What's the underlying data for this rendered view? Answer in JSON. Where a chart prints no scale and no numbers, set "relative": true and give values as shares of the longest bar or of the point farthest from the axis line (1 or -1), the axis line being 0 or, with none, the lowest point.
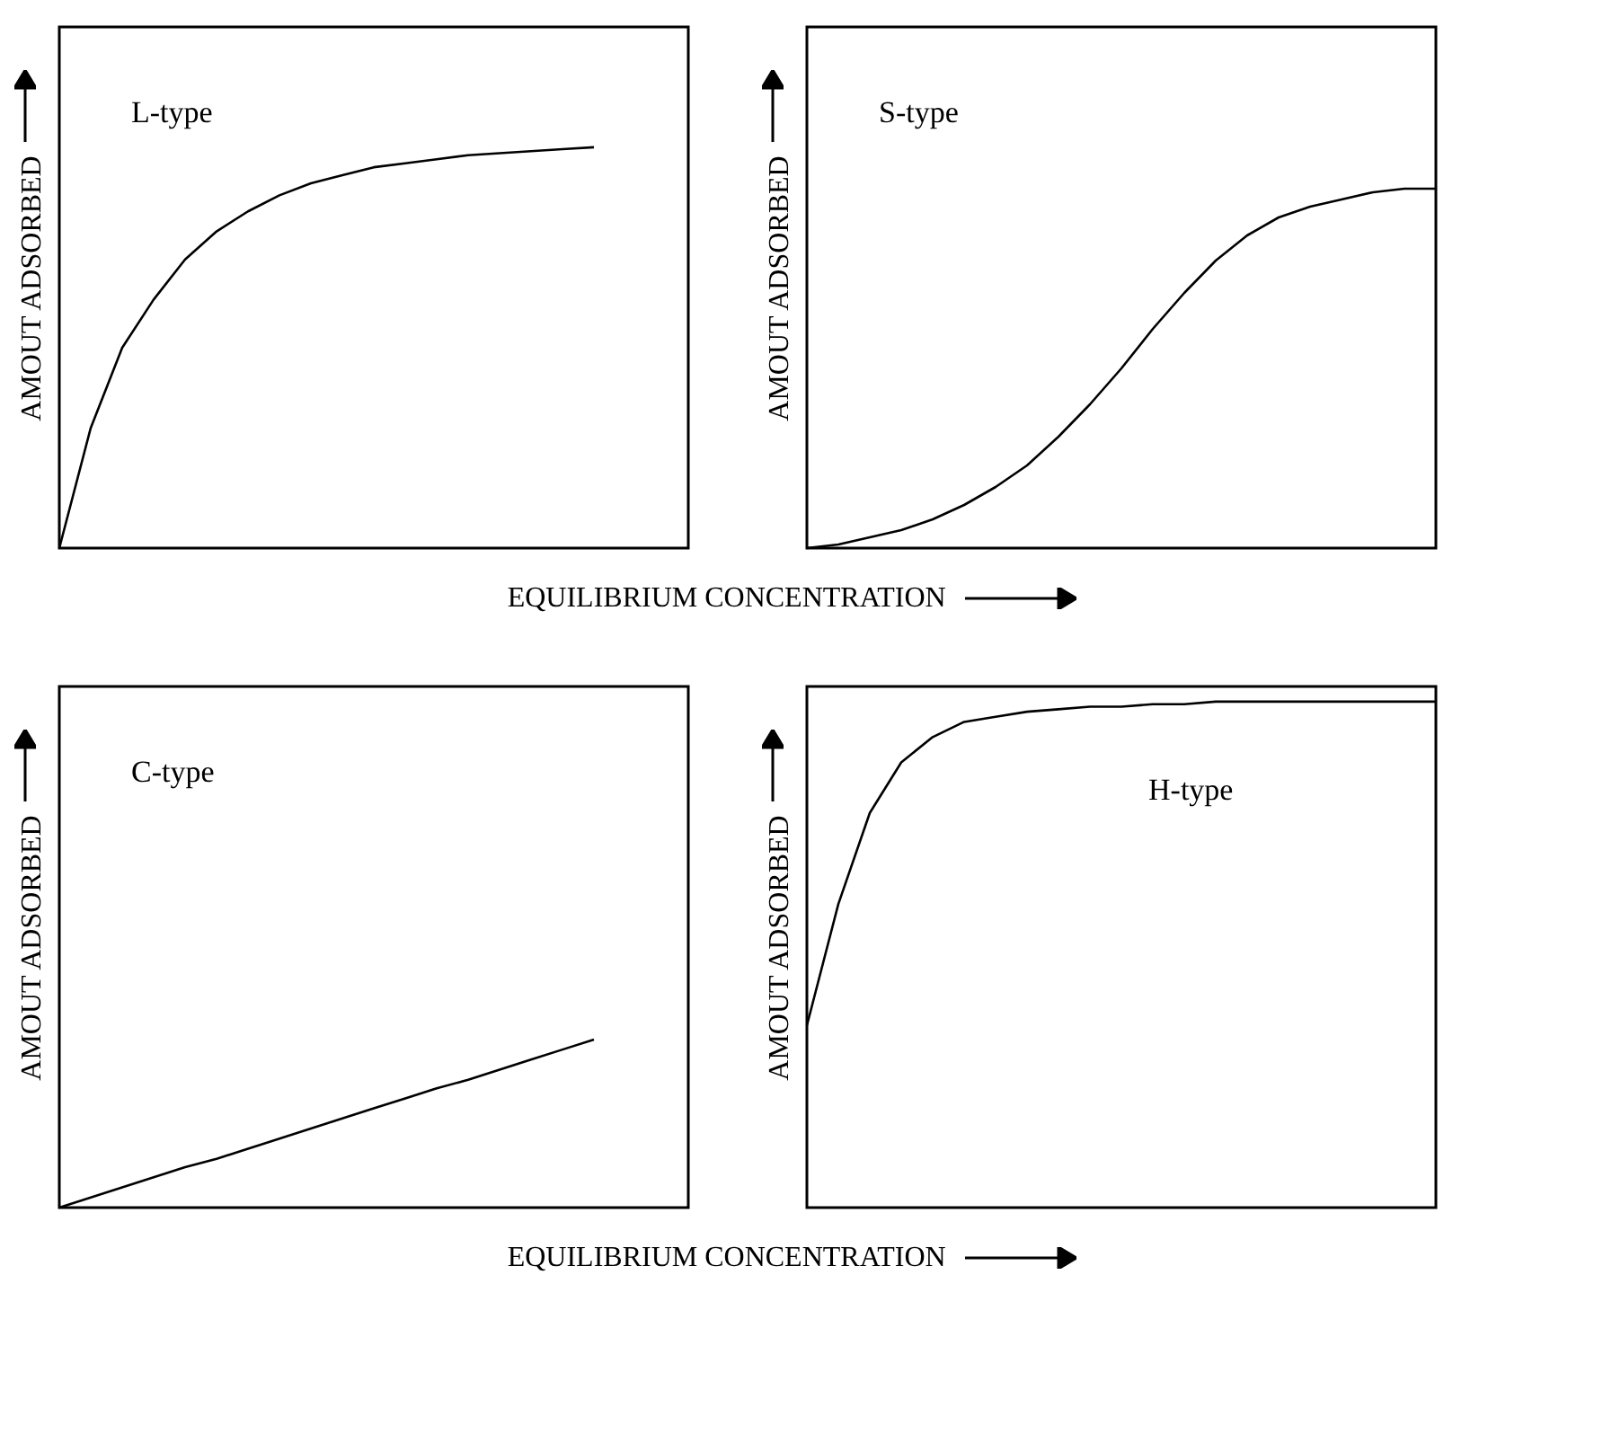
{
  "chart_data": [
    {
      "type": "line",
      "relative": true,
      "xlabel": "EQUILIBRIUM CONCENTRATION",
      "ylabel": "AMOUT ADSORBED",
      "annotations": [
        "L-type"
      ],
      "color": "#000000",
      "tick_labels": false,
      "categories": [
        null,
        null,
        null,
        null,
        null,
        null,
        null,
        null,
        null,
        null,
        null,
        null,
        null,
        null,
        null,
        null,
        null,
        null,
        null,
        null,
        null
      ],
      "values": [
        0,
        0.3,
        0.5,
        0.62,
        0.72,
        0.79,
        0.84,
        0.88,
        0.91,
        0.93,
        0.95,
        0.96,
        0.97,
        0.98,
        0.985,
        0.99,
        0.995,
        1.0,
        null,
        null,
        null
      ]
    },
    {
      "type": "line",
      "relative": true,
      "ylabel": "AMOUT ADSORBED",
      "annotations": [
        "S-type"
      ],
      "color": "#000000",
      "tick_labels": false,
      "categories": [
        null,
        null,
        null,
        null,
        null,
        null,
        null,
        null,
        null,
        null,
        null,
        null,
        null,
        null,
        null,
        null,
        null,
        null,
        null,
        null,
        null
      ],
      "values": [
        0,
        0.01,
        0.03,
        0.05,
        0.08,
        0.12,
        0.17,
        0.23,
        0.31,
        0.4,
        0.5,
        0.61,
        0.71,
        0.8,
        0.87,
        0.92,
        0.95,
        0.97,
        0.99,
        1.0,
        1.0
      ]
    },
    {
      "type": "line",
      "relative": true,
      "xlabel": "EQUILIBRIUM CONCENTRATION",
      "ylabel": "AMOUT ADSORBED",
      "annotations": [
        "C-type"
      ],
      "color": "#000000",
      "tick_labels": false,
      "categories": [
        null,
        null,
        null,
        null,
        null,
        null,
        null,
        null,
        null,
        null,
        null,
        null,
        null,
        null,
        null,
        null,
        null,
        null,
        null,
        null,
        null
      ],
      "values": [
        0,
        0.06,
        0.12,
        0.18,
        0.24,
        0.29,
        0.35,
        0.41,
        0.47,
        0.53,
        0.59,
        0.65,
        0.71,
        0.76,
        0.82,
        0.88,
        0.94,
        1.0,
        null,
        null,
        null
      ]
    },
    {
      "type": "line",
      "relative": true,
      "ylabel": "AMOUT ADSORBED",
      "annotations": [
        "H-type"
      ],
      "color": "#000000",
      "tick_labels": false,
      "categories": [
        null,
        null,
        null,
        null,
        null,
        null,
        null,
        null,
        null,
        null,
        null,
        null,
        null,
        null,
        null,
        null,
        null,
        null,
        null,
        null,
        null
      ],
      "values": [
        0.36,
        0.6,
        0.78,
        0.88,
        0.93,
        0.96,
        0.97,
        0.98,
        0.985,
        0.99,
        0.99,
        0.995,
        0.995,
        1,
        1,
        1,
        1,
        1,
        1,
        1,
        1
      ]
    }
  ]
}
